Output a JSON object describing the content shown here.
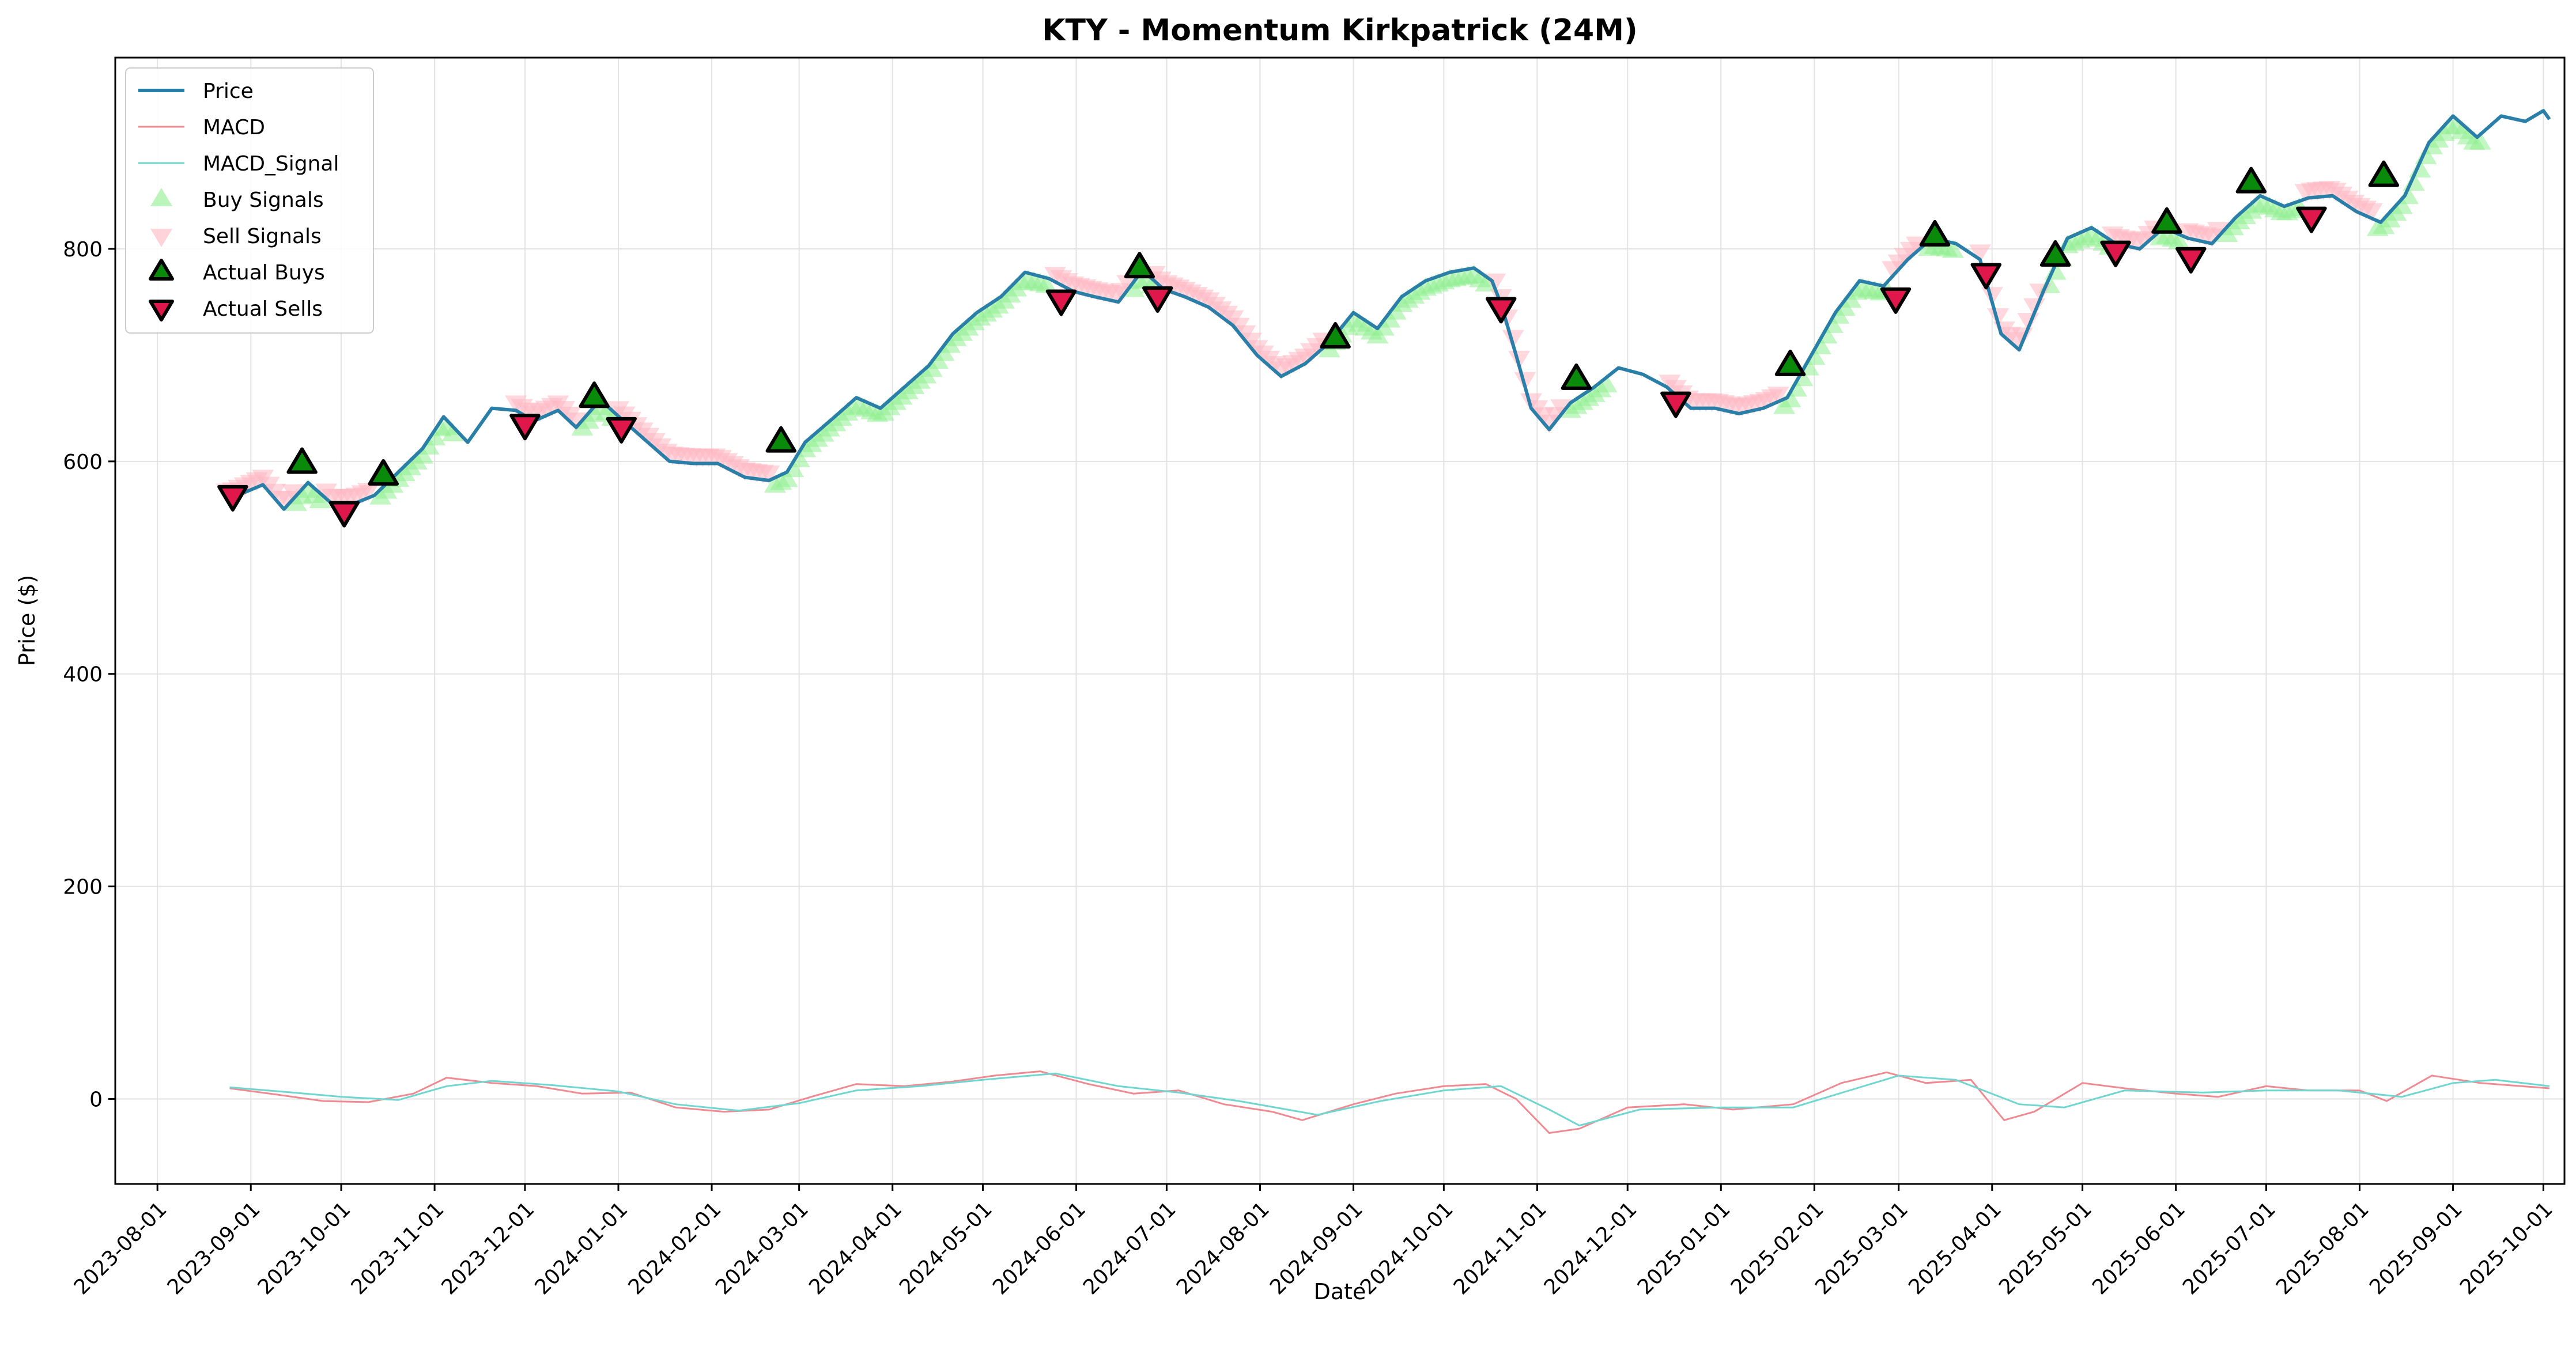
{
  "chart_data": {
    "type": "line",
    "title": "KTY - Momentum Kirkpatrick (24M)",
    "xlabel": "Date",
    "ylabel": "Price ($)",
    "x_ticks": [
      "2023-08-01",
      "2023-09-01",
      "2023-10-01",
      "2023-11-01",
      "2023-12-01",
      "2024-01-01",
      "2024-02-01",
      "2024-03-01",
      "2024-04-01",
      "2024-05-01",
      "2024-06-01",
      "2024-07-01",
      "2024-08-01",
      "2024-09-01",
      "2024-10-01",
      "2024-11-01",
      "2024-12-01",
      "2025-01-01",
      "2025-02-01",
      "2025-03-01",
      "2025-04-01",
      "2025-05-01",
      "2025-06-01",
      "2025-07-01",
      "2025-08-01",
      "2025-09-01",
      "2025-10-01"
    ],
    "y_ticks": [
      0,
      200,
      400,
      600,
      800
    ],
    "xlim": [
      "2023-07-18",
      "2025-10-08"
    ],
    "ylim": [
      -80,
      980
    ],
    "grid": true,
    "legend_position": "top-left",
    "colors": {
      "price": "#2a7fa8",
      "macd": "#f08a92",
      "macd_signal": "#6fd6d0",
      "buy_signal": "#90ee90",
      "sell_signal": "#ffb6c1",
      "actual_buy": "#0a8a0a",
      "actual_sell": "#e0174a"
    },
    "legend": [
      "Price",
      "MACD",
      "MACD_Signal",
      "Buy Signals",
      "Sell Signals",
      "Actual Buys",
      "Actual Sells"
    ],
    "series": [
      {
        "name": "Price",
        "points": [
          [
            "2023-08-25",
            565
          ],
          [
            "2023-09-05",
            578
          ],
          [
            "2023-09-12",
            555
          ],
          [
            "2023-09-20",
            580
          ],
          [
            "2023-09-28",
            560
          ],
          [
            "2023-10-05",
            560
          ],
          [
            "2023-10-12",
            568
          ],
          [
            "2023-10-20",
            590
          ],
          [
            "2023-10-28",
            612
          ],
          [
            "2023-11-04",
            642
          ],
          [
            "2023-11-12",
            618
          ],
          [
            "2023-11-20",
            650
          ],
          [
            "2023-11-28",
            648
          ],
          [
            "2023-12-04",
            638
          ],
          [
            "2023-12-12",
            648
          ],
          [
            "2023-12-18",
            632
          ],
          [
            "2023-12-26",
            658
          ],
          [
            "2024-01-02",
            640
          ],
          [
            "2024-01-10",
            620
          ],
          [
            "2024-01-18",
            600
          ],
          [
            "2024-01-26",
            598
          ],
          [
            "2024-02-03",
            598
          ],
          [
            "2024-02-12",
            585
          ],
          [
            "2024-02-20",
            582
          ],
          [
            "2024-02-26",
            590
          ],
          [
            "2024-03-03",
            618
          ],
          [
            "2024-03-12",
            640
          ],
          [
            "2024-03-20",
            660
          ],
          [
            "2024-03-28",
            650
          ],
          [
            "2024-04-05",
            670
          ],
          [
            "2024-04-13",
            690
          ],
          [
            "2024-04-21",
            720
          ],
          [
            "2024-04-29",
            740
          ],
          [
            "2024-05-07",
            755
          ],
          [
            "2024-05-15",
            778
          ],
          [
            "2024-05-23",
            772
          ],
          [
            "2024-05-31",
            760
          ],
          [
            "2024-06-07",
            755
          ],
          [
            "2024-06-15",
            750
          ],
          [
            "2024-06-23",
            780
          ],
          [
            "2024-06-30",
            762
          ],
          [
            "2024-07-07",
            755
          ],
          [
            "2024-07-15",
            745
          ],
          [
            "2024-07-23",
            728
          ],
          [
            "2024-07-31",
            700
          ],
          [
            "2024-08-08",
            680
          ],
          [
            "2024-08-16",
            692
          ],
          [
            "2024-08-24",
            712
          ],
          [
            "2024-09-01",
            740
          ],
          [
            "2024-09-09",
            725
          ],
          [
            "2024-09-17",
            755
          ],
          [
            "2024-09-25",
            770
          ],
          [
            "2024-10-03",
            778
          ],
          [
            "2024-10-11",
            782
          ],
          [
            "2024-10-17",
            770
          ],
          [
            "2024-10-20",
            748
          ],
          [
            "2024-10-25",
            700
          ],
          [
            "2024-10-30",
            650
          ],
          [
            "2024-11-05",
            630
          ],
          [
            "2024-11-12",
            655
          ],
          [
            "2024-11-20",
            670
          ],
          [
            "2024-11-28",
            688
          ],
          [
            "2024-12-06",
            682
          ],
          [
            "2024-12-14",
            670
          ],
          [
            "2024-12-22",
            650
          ],
          [
            "2024-12-30",
            650
          ],
          [
            "2025-01-07",
            645
          ],
          [
            "2025-01-15",
            650
          ],
          [
            "2025-01-23",
            660
          ],
          [
            "2025-01-31",
            700
          ],
          [
            "2025-02-08",
            740
          ],
          [
            "2025-02-16",
            770
          ],
          [
            "2025-02-24",
            765
          ],
          [
            "2025-03-04",
            790
          ],
          [
            "2025-03-12",
            810
          ],
          [
            "2025-03-20",
            805
          ],
          [
            "2025-03-28",
            790
          ],
          [
            "2025-04-04",
            720
          ],
          [
            "2025-04-10",
            705
          ],
          [
            "2025-04-18",
            760
          ],
          [
            "2025-04-26",
            810
          ],
          [
            "2025-05-04",
            820
          ],
          [
            "2025-05-12",
            805
          ],
          [
            "2025-05-20",
            800
          ],
          [
            "2025-05-28",
            820
          ],
          [
            "2025-06-05",
            810
          ],
          [
            "2025-06-13",
            805
          ],
          [
            "2025-06-21",
            830
          ],
          [
            "2025-06-29",
            850
          ],
          [
            "2025-07-07",
            840
          ],
          [
            "2025-07-15",
            848
          ],
          [
            "2025-07-23",
            850
          ],
          [
            "2025-07-31",
            835
          ],
          [
            "2025-08-08",
            825
          ],
          [
            "2025-08-16",
            850
          ],
          [
            "2025-08-24",
            900
          ],
          [
            "2025-09-01",
            925
          ],
          [
            "2025-09-09",
            905
          ],
          [
            "2025-09-17",
            925
          ],
          [
            "2025-09-25",
            920
          ],
          [
            "2025-10-01",
            930
          ],
          [
            "2025-10-03",
            922
          ]
        ]
      },
      {
        "name": "MACD",
        "points": [
          [
            "2023-08-25",
            10
          ],
          [
            "2023-09-10",
            4
          ],
          [
            "2023-09-25",
            -2
          ],
          [
            "2023-10-10",
            -3
          ],
          [
            "2023-10-25",
            5
          ],
          [
            "2023-11-05",
            20
          ],
          [
            "2023-11-20",
            15
          ],
          [
            "2023-12-05",
            12
          ],
          [
            "2023-12-20",
            5
          ],
          [
            "2024-01-05",
            6
          ],
          [
            "2024-01-20",
            -8
          ],
          [
            "2024-02-05",
            -12
          ],
          [
            "2024-02-20",
            -10
          ],
          [
            "2024-03-05",
            2
          ],
          [
            "2024-03-20",
            14
          ],
          [
            "2024-04-05",
            12
          ],
          [
            "2024-04-20",
            16
          ],
          [
            "2024-05-05",
            22
          ],
          [
            "2024-05-20",
            26
          ],
          [
            "2024-06-05",
            14
          ],
          [
            "2024-06-20",
            5
          ],
          [
            "2024-07-05",
            8
          ],
          [
            "2024-07-20",
            -5
          ],
          [
            "2024-08-05",
            -12
          ],
          [
            "2024-08-15",
            -20
          ],
          [
            "2024-09-01",
            -5
          ],
          [
            "2024-09-15",
            5
          ],
          [
            "2024-10-01",
            12
          ],
          [
            "2024-10-15",
            14
          ],
          [
            "2024-10-25",
            0
          ],
          [
            "2024-11-05",
            -32
          ],
          [
            "2024-11-15",
            -28
          ],
          [
            "2024-12-01",
            -8
          ],
          [
            "2024-12-20",
            -5
          ],
          [
            "2025-01-05",
            -10
          ],
          [
            "2025-01-25",
            -5
          ],
          [
            "2025-02-10",
            15
          ],
          [
            "2025-02-25",
            25
          ],
          [
            "2025-03-10",
            15
          ],
          [
            "2025-03-25",
            18
          ],
          [
            "2025-04-05",
            -20
          ],
          [
            "2025-04-15",
            -12
          ],
          [
            "2025-05-01",
            15
          ],
          [
            "2025-05-15",
            10
          ],
          [
            "2025-06-01",
            5
          ],
          [
            "2025-06-15",
            2
          ],
          [
            "2025-07-01",
            12
          ],
          [
            "2025-07-15",
            8
          ],
          [
            "2025-08-01",
            8
          ],
          [
            "2025-08-10",
            -2
          ],
          [
            "2025-08-25",
            22
          ],
          [
            "2025-09-10",
            15
          ],
          [
            "2025-10-03",
            10
          ]
        ]
      },
      {
        "name": "MACD_Signal",
        "points": [
          [
            "2023-08-25",
            11
          ],
          [
            "2023-09-15",
            6
          ],
          [
            "2023-10-01",
            2
          ],
          [
            "2023-10-20",
            -1
          ],
          [
            "2023-11-05",
            12
          ],
          [
            "2023-11-20",
            17
          ],
          [
            "2023-12-10",
            13
          ],
          [
            "2024-01-01",
            7
          ],
          [
            "2024-01-20",
            -5
          ],
          [
            "2024-02-10",
            -11
          ],
          [
            "2024-03-01",
            -4
          ],
          [
            "2024-03-20",
            8
          ],
          [
            "2024-04-10",
            12
          ],
          [
            "2024-05-01",
            18
          ],
          [
            "2024-05-25",
            24
          ],
          [
            "2024-06-15",
            12
          ],
          [
            "2024-07-05",
            6
          ],
          [
            "2024-07-25",
            -2
          ],
          [
            "2024-08-20",
            -15
          ],
          [
            "2024-09-10",
            -2
          ],
          [
            "2024-10-01",
            8
          ],
          [
            "2024-10-20",
            12
          ],
          [
            "2024-11-05",
            -10
          ],
          [
            "2024-11-15",
            -25
          ],
          [
            "2024-12-05",
            -10
          ],
          [
            "2025-01-01",
            -8
          ],
          [
            "2025-01-25",
            -8
          ],
          [
            "2025-02-15",
            10
          ],
          [
            "2025-03-01",
            22
          ],
          [
            "2025-03-20",
            18
          ],
          [
            "2025-04-10",
            -5
          ],
          [
            "2025-04-25",
            -8
          ],
          [
            "2025-05-15",
            8
          ],
          [
            "2025-06-10",
            6
          ],
          [
            "2025-07-01",
            8
          ],
          [
            "2025-07-25",
            8
          ],
          [
            "2025-08-15",
            2
          ],
          [
            "2025-09-01",
            15
          ],
          [
            "2025-09-15",
            18
          ],
          [
            "2025-10-03",
            12
          ]
        ]
      }
    ],
    "actual_buys": [
      [
        "2023-09-18",
        598
      ],
      [
        "2023-10-15",
        587
      ],
      [
        "2023-12-24",
        660
      ],
      [
        "2024-02-24",
        618
      ],
      [
        "2024-06-22",
        782
      ],
      [
        "2024-08-26",
        716
      ],
      [
        "2024-11-14",
        677
      ],
      [
        "2025-01-24",
        690
      ],
      [
        "2025-03-13",
        812
      ],
      [
        "2025-04-22",
        793
      ],
      [
        "2025-05-29",
        824
      ],
      [
        "2025-06-26",
        862
      ],
      [
        "2025-08-09",
        868
      ]
    ],
    "actual_sells": [
      [
        "2023-08-26",
        568
      ],
      [
        "2023-10-02",
        553
      ],
      [
        "2023-12-01",
        635
      ],
      [
        "2024-01-02",
        632
      ],
      [
        "2024-05-27",
        752
      ],
      [
        "2024-06-28",
        755
      ],
      [
        "2024-10-20",
        745
      ],
      [
        "2024-12-17",
        656
      ],
      [
        "2025-02-28",
        754
      ],
      [
        "2025-03-30",
        777
      ],
      [
        "2025-05-12",
        798
      ],
      [
        "2025-06-06",
        792
      ],
      [
        "2025-07-16",
        830
      ]
    ],
    "buy_signal_ranges": [
      [
        "2023-09-16",
        "2023-09-24"
      ],
      [
        "2023-10-14",
        "2023-11-08"
      ],
      [
        "2023-12-20",
        "2023-12-30"
      ],
      [
        "2024-02-22",
        "2024-05-22"
      ],
      [
        "2024-06-20",
        "2024-06-26"
      ],
      [
        "2024-08-24",
        "2024-10-15"
      ],
      [
        "2024-11-12",
        "2024-11-25"
      ],
      [
        "2025-01-22",
        "2025-02-26"
      ],
      [
        "2025-03-11",
        "2025-03-20"
      ],
      [
        "2025-04-20",
        "2025-05-10"
      ],
      [
        "2025-05-27",
        "2025-06-03"
      ],
      [
        "2025-06-18",
        "2025-06-22"
      ],
      [
        "2025-06-24",
        "2025-07-12"
      ],
      [
        "2025-08-07",
        "2025-09-10"
      ]
    ],
    "sell_signal_ranges": [
      [
        "2023-08-24",
        "2023-09-15"
      ],
      [
        "2023-09-26",
        "2023-10-10"
      ],
      [
        "2023-11-28",
        "2023-12-18"
      ],
      [
        "2024-01-01",
        "2024-02-20"
      ],
      [
        "2024-05-25",
        "2024-06-18"
      ],
      [
        "2024-06-27",
        "2024-08-22"
      ],
      [
        "2024-10-18",
        "2024-11-10"
      ],
      [
        "2024-12-15",
        "2025-01-20"
      ],
      [
        "2025-02-27",
        "2025-03-08"
      ],
      [
        "2025-03-28",
        "2025-04-18"
      ],
      [
        "2025-05-11",
        "2025-05-25"
      ],
      [
        "2025-06-05",
        "2025-06-15"
      ],
      [
        "2025-07-14",
        "2025-08-05"
      ]
    ]
  }
}
